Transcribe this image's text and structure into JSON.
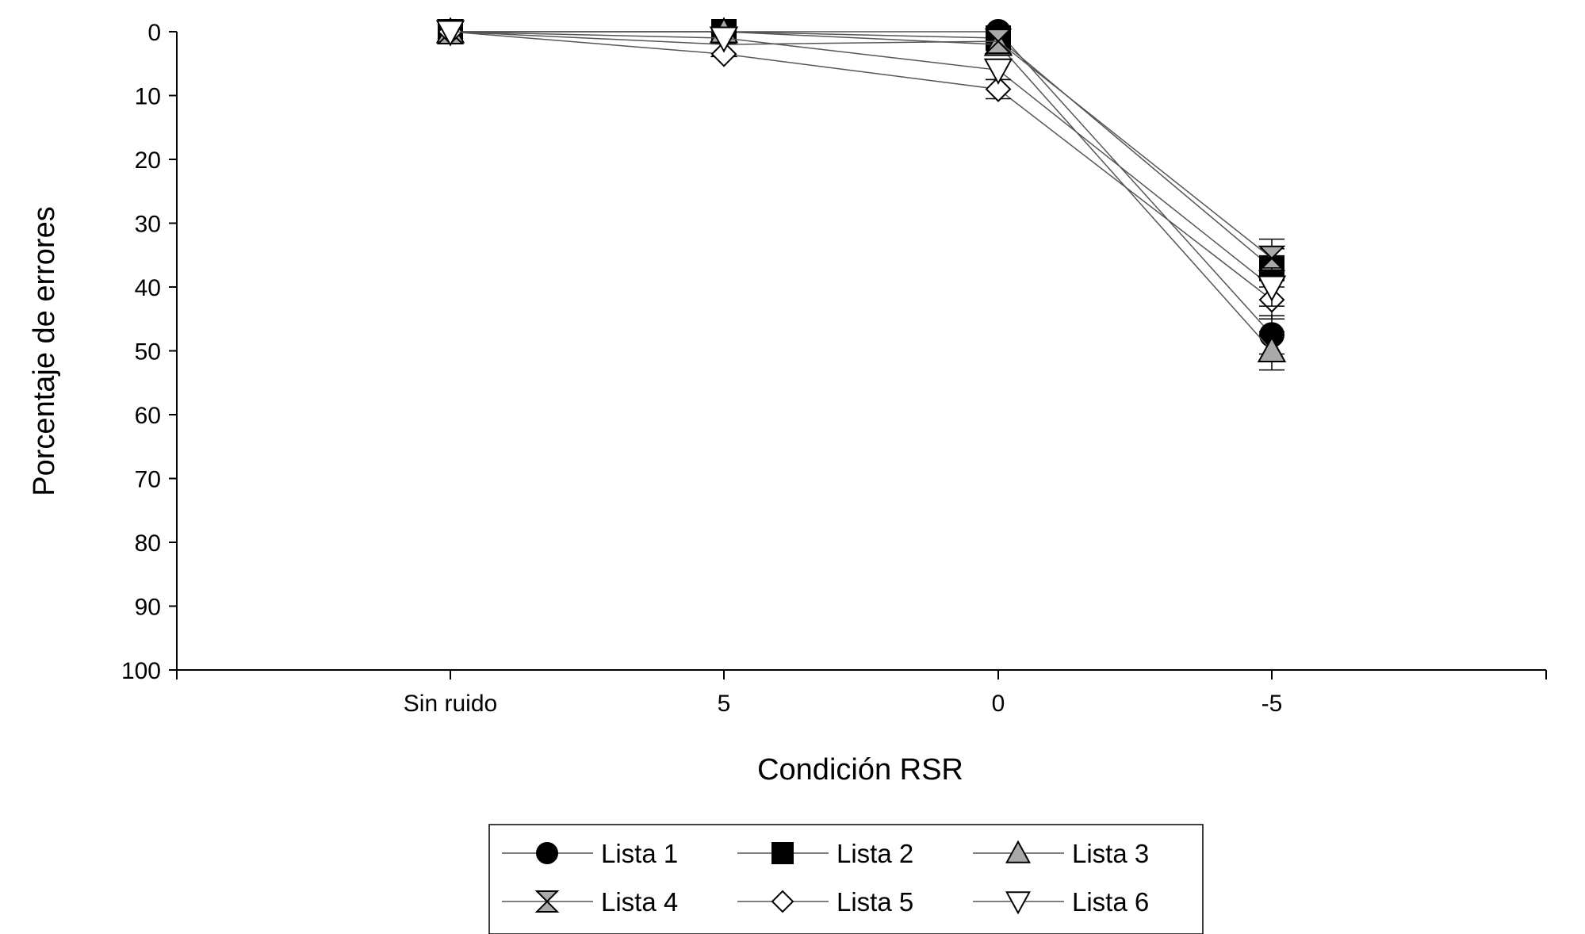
{
  "colors": {
    "background": "#ffffff",
    "axis": "#000000",
    "line": "#555555",
    "gray_fill": "#a9a9a9"
  },
  "chart_data": {
    "type": "line",
    "title": "",
    "xlabel": "Condición RSR",
    "ylabel": "Porcentaje de errores",
    "categories": [
      "Sin ruido",
      "5",
      "0",
      "-5"
    ],
    "y_ticks": [
      "0",
      "10",
      "20",
      "30",
      "40",
      "50",
      "60",
      "70",
      "80",
      "90",
      "100"
    ],
    "ylim": [
      0,
      100
    ],
    "y_inverted": true,
    "grid": false,
    "legend_position": "bottom-center",
    "series": [
      {
        "name": "Lista 1",
        "marker": "circle-filled-black",
        "values": [
          0,
          0,
          0,
          47.5
        ],
        "error": [
          0,
          0,
          0,
          3
        ]
      },
      {
        "name": "Lista 2",
        "marker": "square-filled-black",
        "values": [
          0,
          0,
          1,
          37
        ],
        "error": [
          0,
          0,
          0,
          3
        ]
      },
      {
        "name": "Lista 3",
        "marker": "triangle-up-filled-gray",
        "values": [
          0,
          0,
          2,
          50
        ],
        "error": [
          0,
          0,
          0,
          3
        ]
      },
      {
        "name": "Lista 4",
        "marker": "hourglass-filled-gray",
        "values": [
          0,
          2,
          1.5,
          35.5
        ],
        "error": [
          0,
          0,
          0,
          3
        ]
      },
      {
        "name": "Lista 5",
        "marker": "diamond-open",
        "values": [
          0,
          3.5,
          9,
          42
        ],
        "error": [
          0,
          0,
          1.5,
          3
        ]
      },
      {
        "name": "Lista 6",
        "marker": "triangle-down-open",
        "values": [
          0,
          1,
          6,
          40
        ],
        "error": [
          0,
          0,
          1.5,
          3
        ]
      }
    ]
  }
}
